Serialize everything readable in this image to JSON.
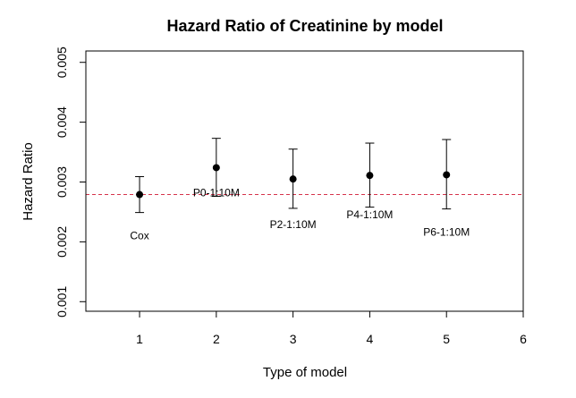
{
  "chart_data": {
    "type": "scatter",
    "title": "Hazard Ratio of Creatinine by model",
    "xlabel": "Type of model",
    "ylabel": "Hazard Ratio",
    "xlim": [
      0.3,
      6
    ],
    "ylim": [
      0.00084,
      0.00519
    ],
    "x_ticks": [
      1,
      2,
      3,
      4,
      5,
      6
    ],
    "x_tick_labels": [
      "1",
      "2",
      "3",
      "4",
      "5",
      "6"
    ],
    "y_ticks": [
      0.001,
      0.002,
      0.003,
      0.004,
      0.005
    ],
    "y_tick_labels": [
      "0.001",
      "0.002",
      "0.003",
      "0.004",
      "0.005"
    ],
    "reference_line": {
      "y": 0.00279,
      "color": "#d6334c",
      "style": "dashed"
    },
    "points": [
      {
        "x": 1,
        "y": 0.00279,
        "lower": 0.00249,
        "upper": 0.00309,
        "label": "Cox"
      },
      {
        "x": 2,
        "y": 0.00324,
        "lower": 0.00276,
        "upper": 0.00373,
        "label": "P0-1:10M"
      },
      {
        "x": 3,
        "y": 0.00305,
        "lower": 0.00256,
        "upper": 0.00355,
        "label": "P2-1:10M"
      },
      {
        "x": 4,
        "y": 0.00311,
        "lower": 0.00258,
        "upper": 0.00365,
        "label": "P4-1:10M"
      },
      {
        "x": 5,
        "y": 0.00312,
        "lower": 0.00255,
        "upper": 0.00371,
        "label": "P6-1:10M"
      }
    ],
    "grid": false,
    "colors": {
      "points": "#000000",
      "error_bars": "#000000"
    }
  }
}
